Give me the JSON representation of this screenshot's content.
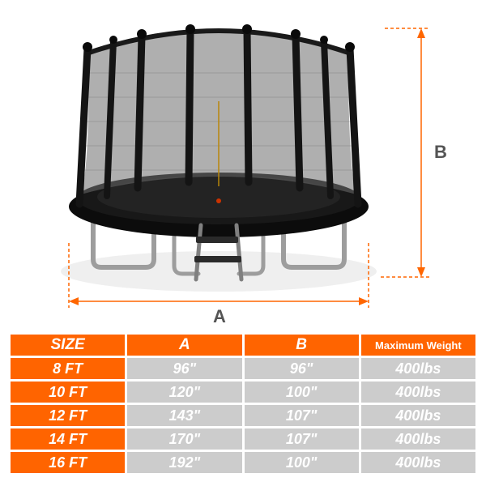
{
  "diagram": {
    "label_A": "A",
    "label_B": "B",
    "color_dim": "#ff6600",
    "color_label": "#555555",
    "trampoline": {
      "net_color": "#686868",
      "mat_color": "#0f0f0f",
      "pad_color": "#111111",
      "pole_color": "#1a1a1a",
      "leg_color": "#9d9d9d",
      "ladder_color": "#888888",
      "floor_shadow": "#f1f1f1"
    }
  },
  "table": {
    "header_bg": "#ff6400",
    "data_bg": "#cccccc",
    "header_text": "#ffffff",
    "data_text": "#ffffff",
    "columns": [
      "SIZE",
      "A",
      "B",
      "Maximum Weight"
    ],
    "rows": [
      [
        "8 FT",
        "96\"",
        "96\"",
        "400lbs"
      ],
      [
        "10 FT",
        "120\"",
        "100\"",
        "400lbs"
      ],
      [
        "12 FT",
        "143\"",
        "107\"",
        "400lbs"
      ],
      [
        "14 FT",
        "170\"",
        "107\"",
        "400lbs"
      ],
      [
        "16 FT",
        "192\"",
        "100\"",
        "400lbs"
      ]
    ]
  }
}
